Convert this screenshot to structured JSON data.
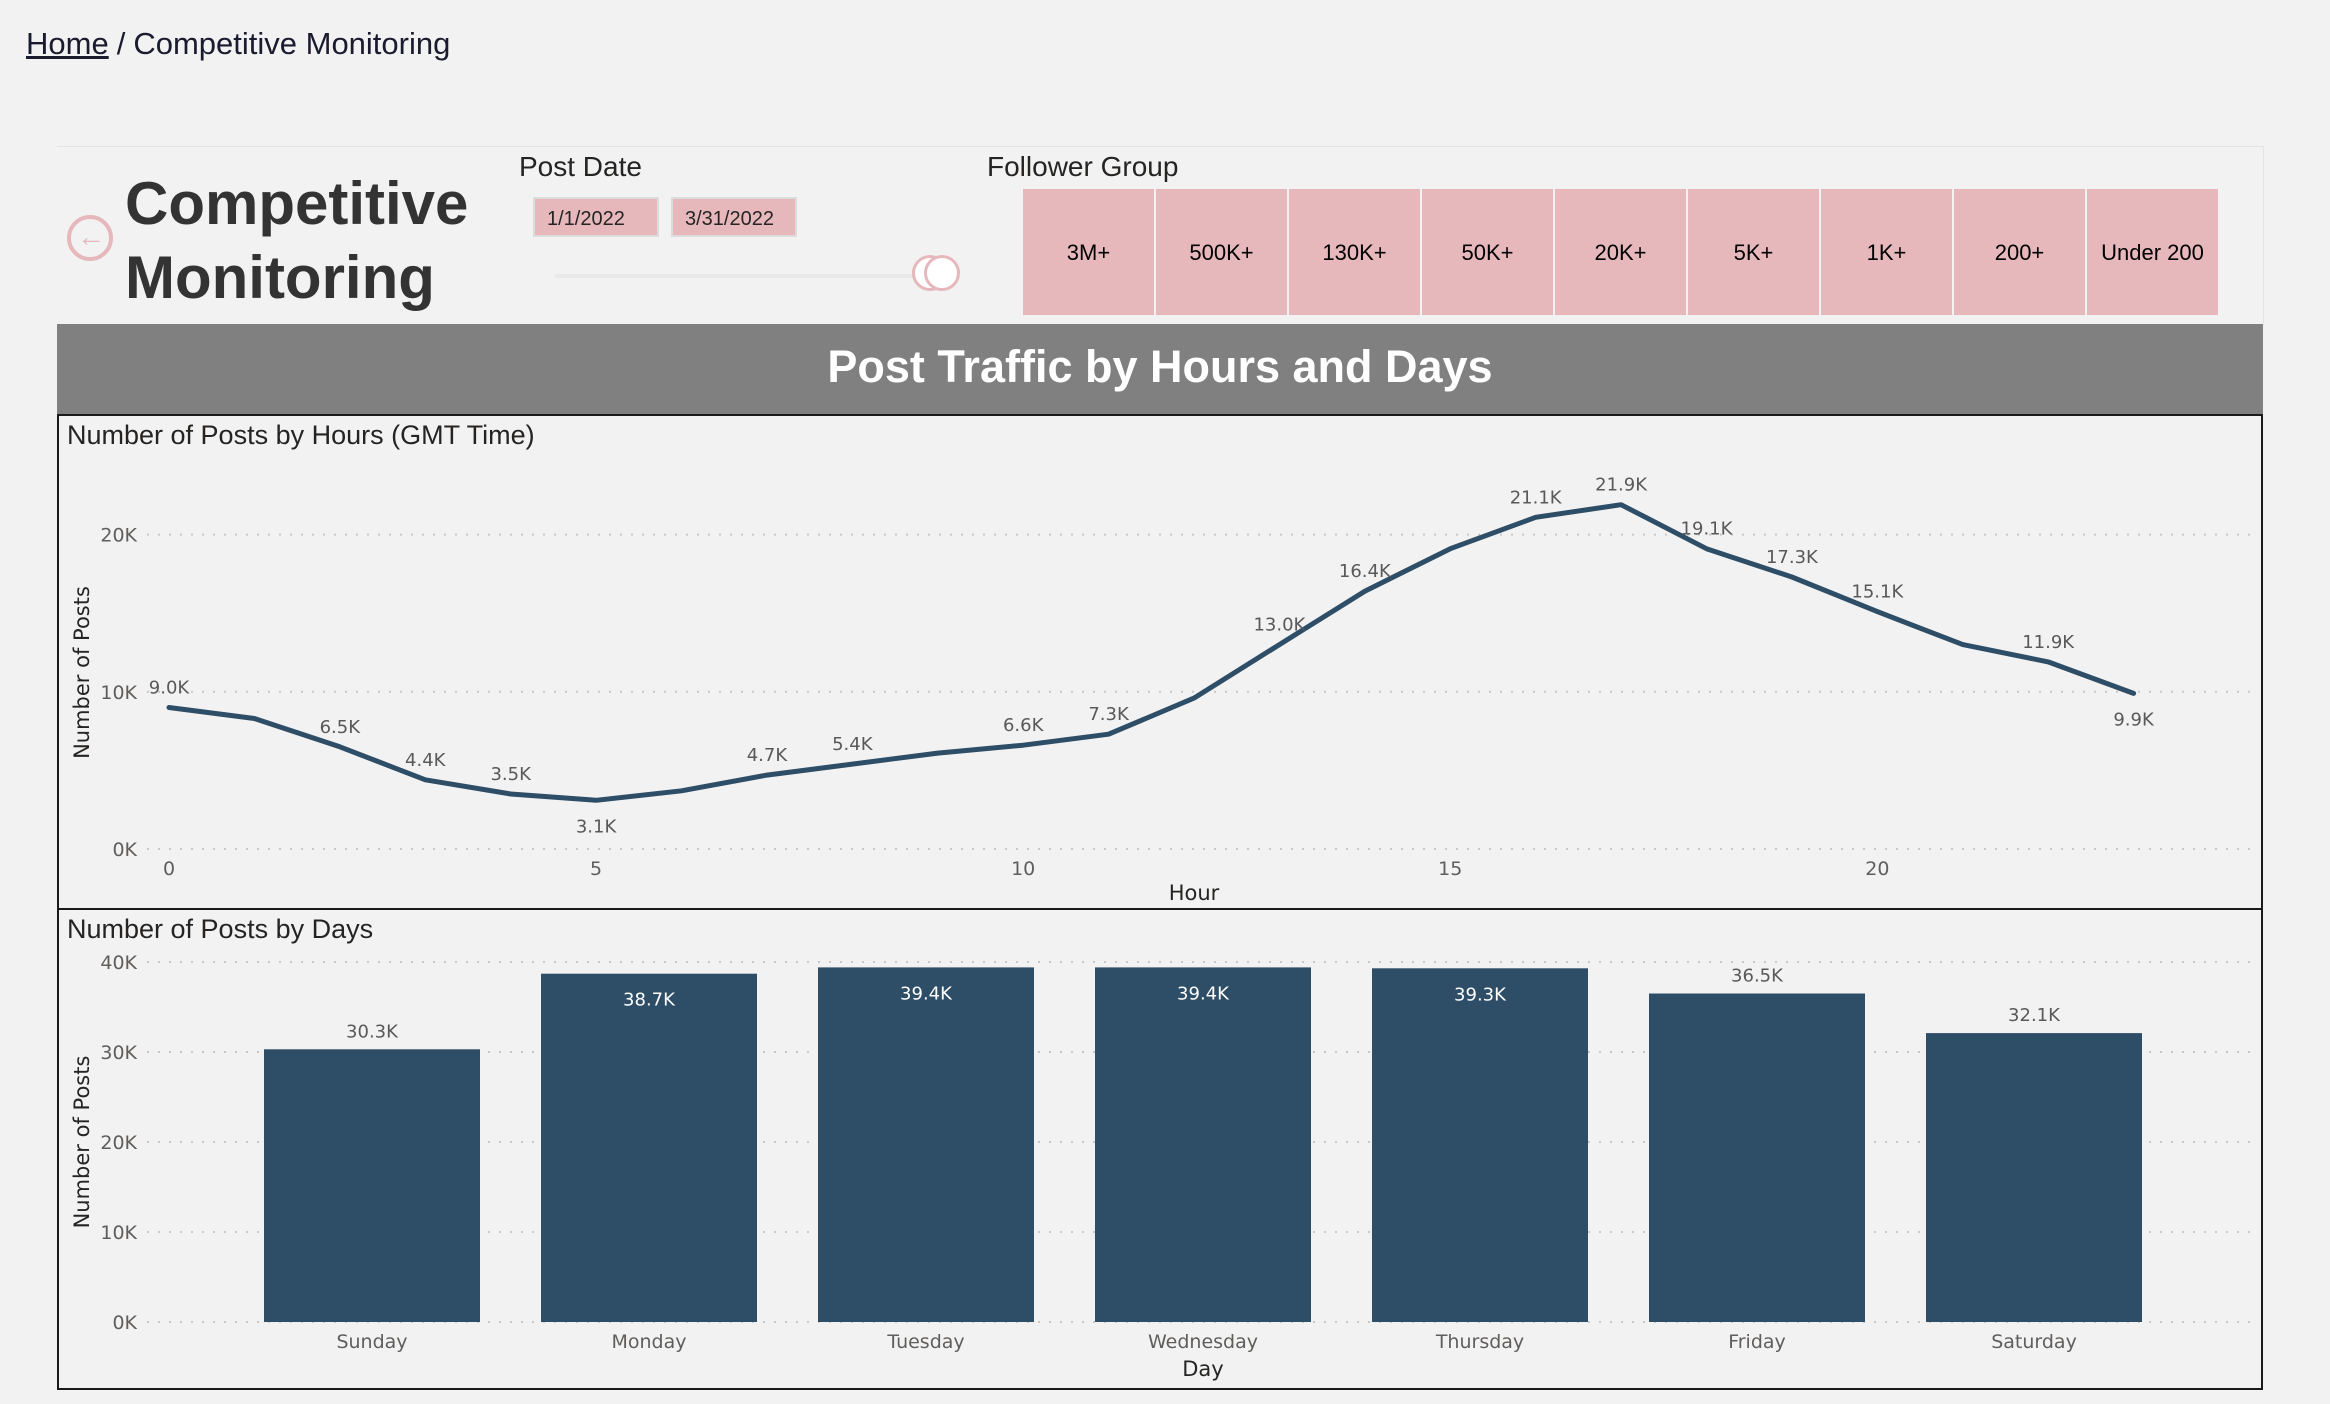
{
  "breadcrumb": {
    "home": "Home",
    "separator": "/",
    "current": "Competitive Monitoring"
  },
  "header": {
    "title_line1": "Competitive",
    "title_line2": "Monitoring",
    "back_icon": "back-arrow-icon",
    "post_date": {
      "label": "Post Date",
      "start": "1/1/2022",
      "end": "3/31/2022"
    },
    "follower_group": {
      "label": "Follower Group",
      "options": [
        "3M+",
        "500K+",
        "130K+",
        "50K+",
        "20K+",
        "5K+",
        "1K+",
        "200+",
        "Under 200"
      ]
    }
  },
  "section_title": "Post Traffic by Hours and Days",
  "colors": {
    "series": "#2e4d66",
    "accent": "#e6b8bc",
    "banner": "#808080"
  },
  "chart_data": [
    {
      "type": "line",
      "title": "Number of Posts by Hours (GMT Time)",
      "xlabel": "Hour",
      "ylabel": "Number of Posts",
      "x": [
        0,
        1,
        2,
        3,
        4,
        5,
        6,
        7,
        8,
        9,
        10,
        11,
        12,
        13,
        14,
        15,
        16,
        17,
        18,
        19,
        20,
        21,
        22,
        23
      ],
      "y": [
        9000,
        8300,
        6500,
        4400,
        3500,
        3100,
        3700,
        4700,
        5400,
        6100,
        6600,
        7300,
        9600,
        13000,
        16400,
        19100,
        21100,
        21900,
        19100,
        17300,
        15100,
        13000,
        11900,
        9900
      ],
      "data_labels": {
        "0": "9.0K",
        "2": "6.5K",
        "3": "4.4K",
        "4": "3.5K",
        "5": "3.1K",
        "7": "4.7K",
        "8": "5.4K",
        "10": "6.6K",
        "11": "7.3K",
        "13": "13.0K",
        "14": "16.4K",
        "16": "21.1K",
        "17": "21.9K",
        "18": "19.1K",
        "19": "17.3K",
        "20": "15.1K",
        "22": "11.9K",
        "23": "9.9K"
      },
      "xlim": [
        0,
        24
      ],
      "ylim": [
        0,
        25000
      ],
      "x_ticks": [
        0,
        5,
        10,
        15,
        20
      ],
      "y_ticks": [
        0,
        10000,
        20000
      ],
      "y_tick_labels": [
        "0K",
        "10K",
        "20K"
      ],
      "grid": true
    },
    {
      "type": "bar",
      "title": "Number of Posts by Days",
      "xlabel": "Day",
      "ylabel": "Number of Posts",
      "categories": [
        "Sunday",
        "Monday",
        "Tuesday",
        "Wednesday",
        "Thursday",
        "Friday",
        "Saturday"
      ],
      "values": [
        30300,
        38700,
        39400,
        39400,
        39300,
        36500,
        32100
      ],
      "data_labels": [
        "30.3K",
        "38.7K",
        "39.4K",
        "39.4K",
        "39.3K",
        "36.5K",
        "32.1K"
      ],
      "labels_inside": [
        false,
        true,
        true,
        true,
        true,
        false,
        false
      ],
      "ylim": [
        0,
        40000
      ],
      "y_ticks": [
        0,
        10000,
        20000,
        30000,
        40000
      ],
      "y_tick_labels": [
        "0K",
        "10K",
        "20K",
        "30K",
        "40K"
      ],
      "grid": true
    }
  ]
}
